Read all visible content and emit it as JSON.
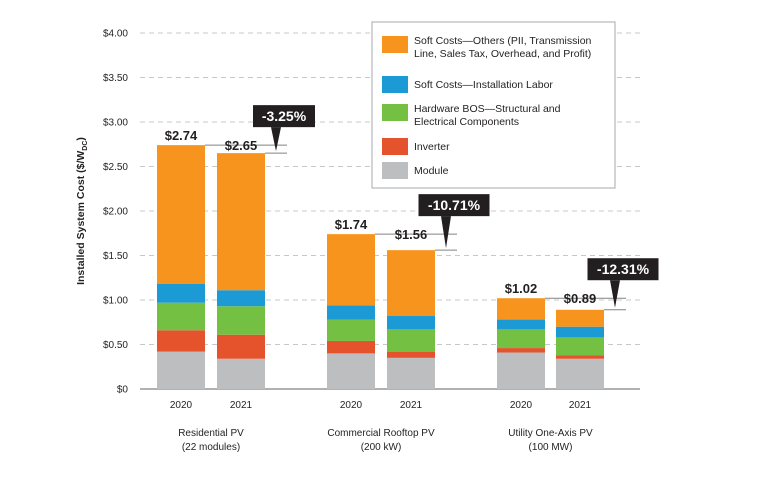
{
  "chart_data": {
    "type": "bar",
    "stacked": true,
    "ylabel": "Installed System Cost ($/W",
    "ylabel_sub": "DC",
    "ylabel_close": ")",
    "ylim": [
      0,
      4
    ],
    "yticks": [
      "$0",
      "$0.50",
      "$1.00",
      "$1.50",
      "$2.00",
      "$2.50",
      "$3.00",
      "$3.50",
      "$4.00"
    ],
    "grid": true,
    "legend_position": "top-right",
    "groups": [
      {
        "label_line1": "Residential PV",
        "label_line2": "(22 modules)",
        "years": [
          "2020",
          "2021"
        ],
        "totals": [
          "$2.74",
          "$2.65"
        ],
        "change": "-3.25%"
      },
      {
        "label_line1": "Commercial Rooftop PV",
        "label_line2": "(200 kW)",
        "years": [
          "2020",
          "2021"
        ],
        "totals": [
          "$1.74",
          "$1.56"
        ],
        "change": "-10.71%"
      },
      {
        "label_line1": "Utility One-Axis PV",
        "label_line2": "(100 MW)",
        "years": [
          "2020",
          "2021"
        ],
        "totals": [
          "$1.02",
          "$0.89"
        ],
        "change": "-12.31%"
      }
    ],
    "series": [
      {
        "name": "Module",
        "color": "#bcbec0",
        "values": [
          0.42,
          0.34,
          0.4,
          0.35,
          0.41,
          0.34
        ]
      },
      {
        "name": "Inverter",
        "color": "#e5532d",
        "values": [
          0.24,
          0.27,
          0.14,
          0.07,
          0.05,
          0.04
        ]
      },
      {
        "name": "Hardware BOS—Structural and Electrical Components",
        "legend_lines": [
          "Hardware BOS—Structural and",
          "Electrical Components"
        ],
        "color": "#74c043",
        "values": [
          0.31,
          0.32,
          0.24,
          0.25,
          0.21,
          0.2
        ]
      },
      {
        "name": "Soft Costs—Installation Labor",
        "color": "#1b9ad6",
        "values": [
          0.21,
          0.18,
          0.16,
          0.15,
          0.11,
          0.12
        ]
      },
      {
        "name": "Soft Costs—Others (PII, Transmission Line, Sales Tax, Overhead, and Profit)",
        "legend_lines": [
          "Soft Costs—Others (PII, Transmission",
          "Line, Sales Tax, Overhead, and Profit)"
        ],
        "color": "#f7941d",
        "values": [
          1.56,
          1.54,
          0.8,
          0.74,
          0.24,
          0.19
        ]
      }
    ]
  }
}
